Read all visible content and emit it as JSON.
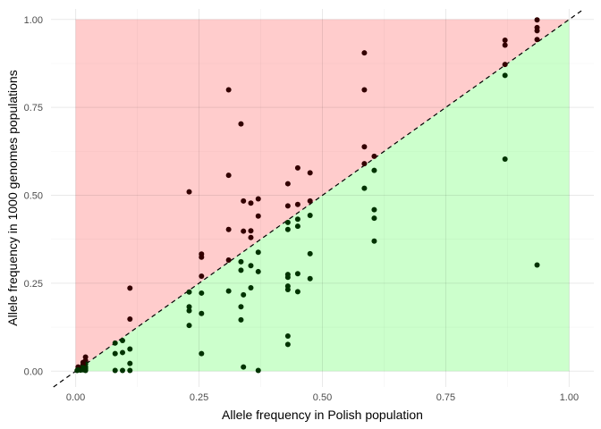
{
  "chart_data": {
    "type": "scatter",
    "xlabel": "Allele frequency in Polish population",
    "ylabel": "Allele frequency in 1000 genomes populations",
    "xlim": [
      -0.05,
      1.05
    ],
    "ylim": [
      -0.045,
      1.03
    ],
    "xticks": [
      0.0,
      0.25,
      0.5,
      0.75,
      1.0
    ],
    "yticks": [
      0.0,
      0.25,
      0.5,
      0.75,
      1.0
    ],
    "xtick_labels": [
      "0.00",
      "0.25",
      "0.50",
      "0.75",
      "1.00"
    ],
    "ytick_labels": [
      "0.00",
      "0.25",
      "0.50",
      "0.75",
      "1.00"
    ],
    "grid": true,
    "regions": [
      {
        "name": "above-diagonal",
        "color": "#ffcccc"
      },
      {
        "name": "below-diagonal",
        "color": "#ccffcc"
      }
    ],
    "reference_line": {
      "slope": 1,
      "intercept": 0,
      "style": "dashed",
      "color": "#000000"
    },
    "point_colors": {
      "above": "#330000",
      "below": "#003300"
    },
    "points": [
      [
        0.935,
        0.999
      ],
      [
        0.935,
        0.977
      ],
      [
        0.935,
        0.968
      ],
      [
        0.935,
        0.943
      ],
      [
        0.935,
        0.302
      ],
      [
        0.87,
        0.941
      ],
      [
        0.87,
        0.927
      ],
      [
        0.87,
        0.872
      ],
      [
        0.87,
        0.841
      ],
      [
        0.87,
        0.603
      ],
      [
        0.585,
        0.905
      ],
      [
        0.585,
        0.8
      ],
      [
        0.585,
        0.638
      ],
      [
        0.585,
        0.59
      ],
      [
        0.585,
        0.52
      ],
      [
        0.605,
        0.611
      ],
      [
        0.605,
        0.571
      ],
      [
        0.605,
        0.459
      ],
      [
        0.605,
        0.435
      ],
      [
        0.605,
        0.37
      ],
      [
        0.31,
        0.8
      ],
      [
        0.31,
        0.557
      ],
      [
        0.31,
        0.403
      ],
      [
        0.31,
        0.316
      ],
      [
        0.31,
        0.228
      ],
      [
        0.335,
        0.703
      ],
      [
        0.335,
        0.311
      ],
      [
        0.335,
        0.287
      ],
      [
        0.335,
        0.183
      ],
      [
        0.335,
        0.146
      ],
      [
        0.34,
        0.484
      ],
      [
        0.34,
        0.398
      ],
      [
        0.34,
        0.217
      ],
      [
        0.34,
        0.012
      ],
      [
        0.355,
        0.478
      ],
      [
        0.355,
        0.399
      ],
      [
        0.355,
        0.38
      ],
      [
        0.355,
        0.3
      ],
      [
        0.355,
        0.237
      ],
      [
        0.37,
        0.49
      ],
      [
        0.37,
        0.441
      ],
      [
        0.37,
        0.338
      ],
      [
        0.37,
        0.283
      ],
      [
        0.37,
        0.002
      ],
      [
        0.43,
        0.533
      ],
      [
        0.43,
        0.47
      ],
      [
        0.43,
        0.423
      ],
      [
        0.43,
        0.403
      ],
      [
        0.43,
        0.275
      ],
      [
        0.43,
        0.267
      ],
      [
        0.43,
        0.242
      ],
      [
        0.43,
        0.232
      ],
      [
        0.43,
        0.1
      ],
      [
        0.43,
        0.076
      ],
      [
        0.45,
        0.578
      ],
      [
        0.45,
        0.474
      ],
      [
        0.45,
        0.432
      ],
      [
        0.45,
        0.412
      ],
      [
        0.45,
        0.277
      ],
      [
        0.45,
        0.226
      ],
      [
        0.475,
        0.564
      ],
      [
        0.475,
        0.484
      ],
      [
        0.475,
        0.443
      ],
      [
        0.475,
        0.334
      ],
      [
        0.475,
        0.263
      ],
      [
        0.23,
        0.51
      ],
      [
        0.23,
        0.225
      ],
      [
        0.23,
        0.183
      ],
      [
        0.23,
        0.172
      ],
      [
        0.23,
        0.13
      ],
      [
        0.255,
        0.333
      ],
      [
        0.255,
        0.324
      ],
      [
        0.255,
        0.27
      ],
      [
        0.255,
        0.222
      ],
      [
        0.255,
        0.164
      ],
      [
        0.255,
        0.05
      ],
      [
        0.11,
        0.236
      ],
      [
        0.11,
        0.148
      ],
      [
        0.11,
        0.063
      ],
      [
        0.11,
        0.022
      ],
      [
        0.11,
        0.002
      ],
      [
        0.095,
        0.087
      ],
      [
        0.095,
        0.053
      ],
      [
        0.095,
        0.002
      ],
      [
        0.08,
        0.08
      ],
      [
        0.08,
        0.05
      ],
      [
        0.08,
        0.002
      ],
      [
        0.02,
        0.04
      ],
      [
        0.02,
        0.03
      ],
      [
        0.02,
        0.02
      ],
      [
        0.02,
        0.012
      ],
      [
        0.02,
        0.006
      ],
      [
        0.02,
        0.002
      ],
      [
        0.015,
        0.025
      ],
      [
        0.015,
        0.018
      ],
      [
        0.015,
        0.01
      ],
      [
        0.015,
        0.004
      ],
      [
        0.01,
        0.01
      ],
      [
        0.01,
        0.003
      ],
      [
        0.005,
        0.012
      ],
      [
        0.005,
        0.004
      ],
      [
        0.003,
        0.002
      ]
    ]
  }
}
